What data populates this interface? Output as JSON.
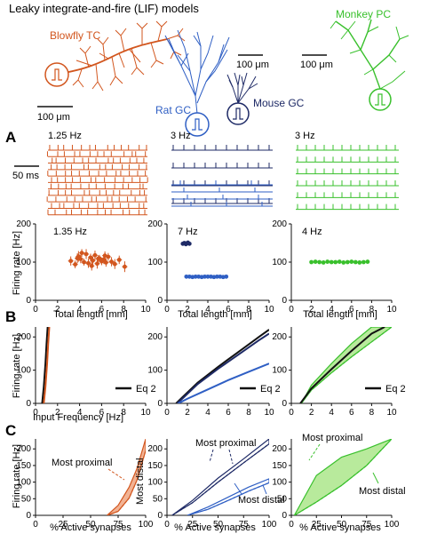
{
  "header": {
    "title": "Leaky integrate-and-fire (LIF) models",
    "models": {
      "blowfly": "Blowfly TC",
      "rat": "Rat GC",
      "mouse": "Mouse GC",
      "monkey": "Monkey PC"
    },
    "scale_bars": {
      "blowfly": "100 μm",
      "rat": "100 μm",
      "monkey": "100 μm"
    }
  },
  "colors": {
    "blowfly": "#d2561e",
    "blowfly_fill": "#f2b394",
    "rat": "#2f5fc4",
    "mouse": "#1e2a66",
    "monkey": "#39c02c",
    "monkey_fill": "#b8ea9c",
    "black": "#111111"
  },
  "panel_labels": {
    "a": "A",
    "b": "B",
    "c": "C"
  },
  "panel_a": {
    "time_scale": "50 ms",
    "rasters": [
      {
        "rate": "1.25 Hz"
      },
      {
        "rate": "3 Hz"
      },
      {
        "rate": "3 Hz"
      }
    ],
    "rate_labels": [
      "1.35 Hz",
      "7 Hz",
      "4 Hz"
    ],
    "ylabel": "Firing rate [Hz]",
    "xlabel": "Total length [mm]"
  },
  "panel_b": {
    "ylabel": "Firing rate [Hz]",
    "xlabel": "Input Frequency [Hz]",
    "legend": "Eq 2"
  },
  "panel_c": {
    "ylabel": "Firing rate [Hz]",
    "xlabel": "% Active synapses",
    "annotations": {
      "proximal": "Most proximal",
      "distal": "Most distal"
    }
  },
  "chart_data": [
    {
      "type": "scatter",
      "panel": "A-1",
      "xlabel": "Total length [mm]",
      "ylabel": "Firing rate [Hz]",
      "xlim": [
        0,
        10
      ],
      "ylim": [
        0,
        200
      ],
      "xticks": [
        0,
        2,
        4,
        6,
        8,
        10
      ],
      "yticks": [
        0,
        100,
        200
      ],
      "annotation": "1.35 Hz",
      "series": [
        {
          "color": "#d2561e",
          "x": [
            3.2,
            3.6,
            3.9,
            4.1,
            4.4,
            4.6,
            4.8,
            5.0,
            5.2,
            5.4,
            5.6,
            5.8,
            6.0,
            6.2,
            6.4,
            6.6,
            6.9,
            7.2,
            7.6,
            8.1,
            4.2,
            5.1,
            5.7,
            6.3,
            3.8
          ],
          "y": [
            103,
            94,
            115,
            108,
            100,
            121,
            97,
            112,
            104,
            118,
            96,
            110,
            102,
            107,
            99,
            114,
            101,
            95,
            106,
            88,
            124,
            90,
            109,
            117,
            110
          ],
          "yerr": [
            12,
            10,
            14,
            11,
            9,
            13,
            12,
            10,
            11,
            12,
            13,
            9,
            10,
            12,
            11,
            10,
            12,
            13,
            11,
            14,
            10,
            12,
            9,
            11,
            13
          ]
        }
      ]
    },
    {
      "type": "scatter",
      "panel": "A-2",
      "xlabel": "Total length [mm]",
      "ylabel": "",
      "xlim": [
        0,
        10
      ],
      "ylim": [
        0,
        200
      ],
      "xticks": [
        0,
        2,
        4,
        6,
        8,
        10
      ],
      "yticks": [
        0,
        100,
        200
      ],
      "annotation": "7 Hz",
      "series": [
        {
          "color": "#1e2a66",
          "x": [
            1.55,
            1.7,
            1.85,
            1.95,
            2.05,
            2.2
          ],
          "y": [
            148,
            150,
            147,
            149,
            151,
            148
          ]
        },
        {
          "color": "#2f5fc4",
          "x": [
            1.9,
            2.2,
            2.5,
            2.8,
            3.1,
            3.4,
            3.7,
            4.0,
            4.3,
            4.6,
            4.9,
            5.2,
            5.5,
            5.8
          ],
          "y": [
            62,
            62,
            61,
            62,
            62,
            61,
            62,
            62,
            62,
            61,
            62,
            62,
            61,
            62
          ]
        }
      ]
    },
    {
      "type": "scatter",
      "panel": "A-3",
      "xlabel": "Total length [mm]",
      "ylabel": "",
      "xlim": [
        0,
        10
      ],
      "ylim": [
        0,
        200
      ],
      "xticks": [
        0,
        2,
        4,
        6,
        8,
        10
      ],
      "yticks": [
        0,
        100,
        200
      ],
      "annotation": "4 Hz",
      "series": [
        {
          "color": "#39c02c",
          "x": [
            2.0,
            2.4,
            2.8,
            3.2,
            3.6,
            4.0,
            4.4,
            4.8,
            5.2,
            5.6,
            6.0,
            6.4,
            6.8,
            7.2,
            7.6
          ],
          "y": [
            100,
            101,
            100,
            99,
            101,
            100,
            100,
            101,
            99,
            100,
            101,
            100,
            99,
            100,
            101
          ]
        }
      ]
    },
    {
      "type": "line",
      "panel": "B-1",
      "xlabel": "Input Frequency [Hz]",
      "ylabel": "Firing rate [Hz]",
      "xlim": [
        0,
        10
      ],
      "ylim": [
        0,
        230
      ],
      "xticks": [
        0,
        2,
        4,
        6,
        8,
        10
      ],
      "yticks": [
        0,
        100,
        200
      ],
      "legend": "Eq 2",
      "series": [
        {
          "color": "#111111",
          "x": [
            0.6,
            0.75,
            0.9,
            1.0,
            1.1
          ],
          "y": [
            0,
            50,
            120,
            180,
            230
          ]
        },
        {
          "color": "#d2561e",
          "x": [
            0.75,
            0.9,
            1.05,
            1.15,
            1.25
          ],
          "y": [
            0,
            50,
            120,
            180,
            230
          ]
        }
      ]
    },
    {
      "type": "line",
      "panel": "B-2",
      "xlabel": "Input Frequency [Hz]",
      "ylabel": "",
      "xlim": [
        0,
        10
      ],
      "ylim": [
        0,
        230
      ],
      "xticks": [
        0,
        2,
        4,
        6,
        8,
        10
      ],
      "yticks": [
        0,
        100,
        200
      ],
      "legend": "Eq 2",
      "series": [
        {
          "color": "#111111",
          "x": [
            0.9,
            1.5,
            3,
            5,
            7,
            9,
            10
          ],
          "y": [
            0,
            18,
            62,
            110,
            155,
            200,
            222
          ]
        },
        {
          "color": "#1e2a66",
          "x": [
            1.0,
            1.6,
            3,
            5,
            7,
            9,
            10
          ],
          "y": [
            0,
            17,
            58,
            104,
            147,
            190,
            210
          ]
        },
        {
          "color": "#2f5fc4",
          "x": [
            1.1,
            2,
            4,
            6,
            8,
            10
          ],
          "y": [
            0,
            14,
            42,
            70,
            95,
            120
          ]
        }
      ]
    },
    {
      "type": "area",
      "panel": "B-3",
      "xlabel": "Input Frequency [Hz]",
      "ylabel": "",
      "xlim": [
        0,
        10
      ],
      "ylim": [
        0,
        230
      ],
      "xticks": [
        0,
        2,
        4,
        6,
        8,
        10
      ],
      "yticks": [
        0,
        100,
        200
      ],
      "legend": "Eq 2",
      "series": [
        {
          "color": "#39c02c",
          "x": [
            1.0,
            2,
            4,
            6,
            8,
            10
          ],
          "y_upper": [
            0,
            55,
            120,
            180,
            230,
            230
          ],
          "y_lower": [
            0,
            40,
            92,
            140,
            185,
            230
          ]
        },
        {
          "color": "#111111",
          "x": [
            0.9,
            2,
            4,
            6,
            8,
            9.3
          ],
          "y": [
            0,
            45,
            103,
            158,
            210,
            230
          ]
        }
      ]
    },
    {
      "type": "area",
      "panel": "C-1",
      "xlabel": "% Active synapses",
      "ylabel": "Firing rate [Hz]",
      "xlim": [
        0,
        100
      ],
      "ylim": [
        0,
        230
      ],
      "xticks": [
        0,
        25,
        50,
        75,
        100
      ],
      "yticks": [
        0,
        50,
        100,
        150,
        200
      ],
      "series": [
        {
          "color": "#d2561e",
          "x": [
            65,
            75,
            85,
            92,
            100
          ],
          "y_upper": [
            0,
            30,
            85,
            140,
            230
          ],
          "y_lower": [
            0,
            12,
            52,
            105,
            195
          ]
        }
      ]
    },
    {
      "type": "area",
      "panel": "C-2",
      "xlabel": "% Active synapses",
      "ylabel": "",
      "xlim": [
        0,
        100
      ],
      "ylim": [
        0,
        230
      ],
      "xticks": [
        0,
        25,
        50,
        75,
        100
      ],
      "yticks": [
        0,
        50,
        100,
        150,
        200
      ],
      "series": [
        {
          "color": "#1e2a66",
          "x": [
            5,
            25,
            50,
            75,
            100
          ],
          "y_upper": [
            0,
            45,
            112,
            170,
            230
          ],
          "y_lower": [
            0,
            38,
            100,
            158,
            215
          ]
        },
        {
          "color": "#2f5fc4",
          "x": [
            20,
            40,
            60,
            80,
            100
          ],
          "y_upper": [
            0,
            25,
            55,
            85,
            110
          ],
          "y_lower": [
            0,
            18,
            45,
            73,
            98
          ]
        }
      ]
    },
    {
      "type": "area",
      "panel": "C-3",
      "xlabel": "% Active synapses",
      "ylabel": "",
      "xlim": [
        0,
        100
      ],
      "ylim": [
        0,
        230
      ],
      "xticks": [
        0,
        25,
        50,
        75,
        100
      ],
      "yticks": [
        0,
        50,
        100,
        150,
        200
      ],
      "series": [
        {
          "color": "#39c02c",
          "x": [
            3,
            25,
            50,
            75,
            100
          ],
          "y_upper": [
            0,
            120,
            175,
            200,
            230
          ],
          "y_lower": [
            0,
            40,
            90,
            150,
            230
          ]
        }
      ]
    }
  ]
}
